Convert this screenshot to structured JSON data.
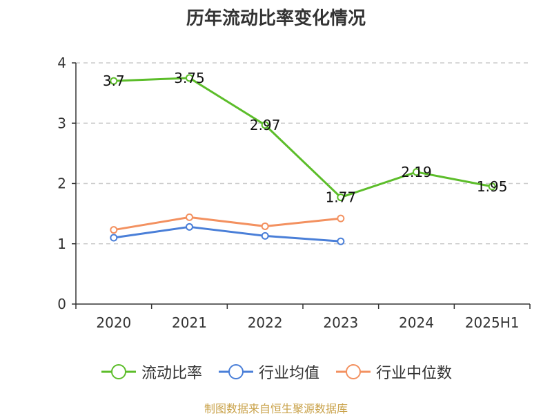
{
  "chart_data": {
    "type": "line",
    "title": "历年流动比率变化情况",
    "categories": [
      "2020",
      "2021",
      "2022",
      "2023",
      "2024",
      "2025H1"
    ],
    "ylim": [
      0,
      4
    ],
    "yticks": [
      "0",
      "1",
      "2",
      "3",
      "4"
    ],
    "grid": true,
    "legend_position": "bottom",
    "series": [
      {
        "name": "流动比率",
        "color": "#5cbd2a",
        "values": [
          3.7,
          3.75,
          2.97,
          1.77,
          2.19,
          1.95
        ],
        "labels": [
          "3.7",
          "3.75",
          "2.97",
          "1.77",
          "2.19",
          "1.95"
        ]
      },
      {
        "name": "行业均值",
        "color": "#4a7fd8",
        "values": [
          1.1,
          1.28,
          1.13,
          1.04,
          null,
          null
        ]
      },
      {
        "name": "行业中位数",
        "color": "#f39160",
        "values": [
          1.23,
          1.44,
          1.29,
          1.42,
          null,
          null
        ]
      }
    ]
  },
  "footer": {
    "source": "制图数据来自恒生聚源数据库"
  }
}
